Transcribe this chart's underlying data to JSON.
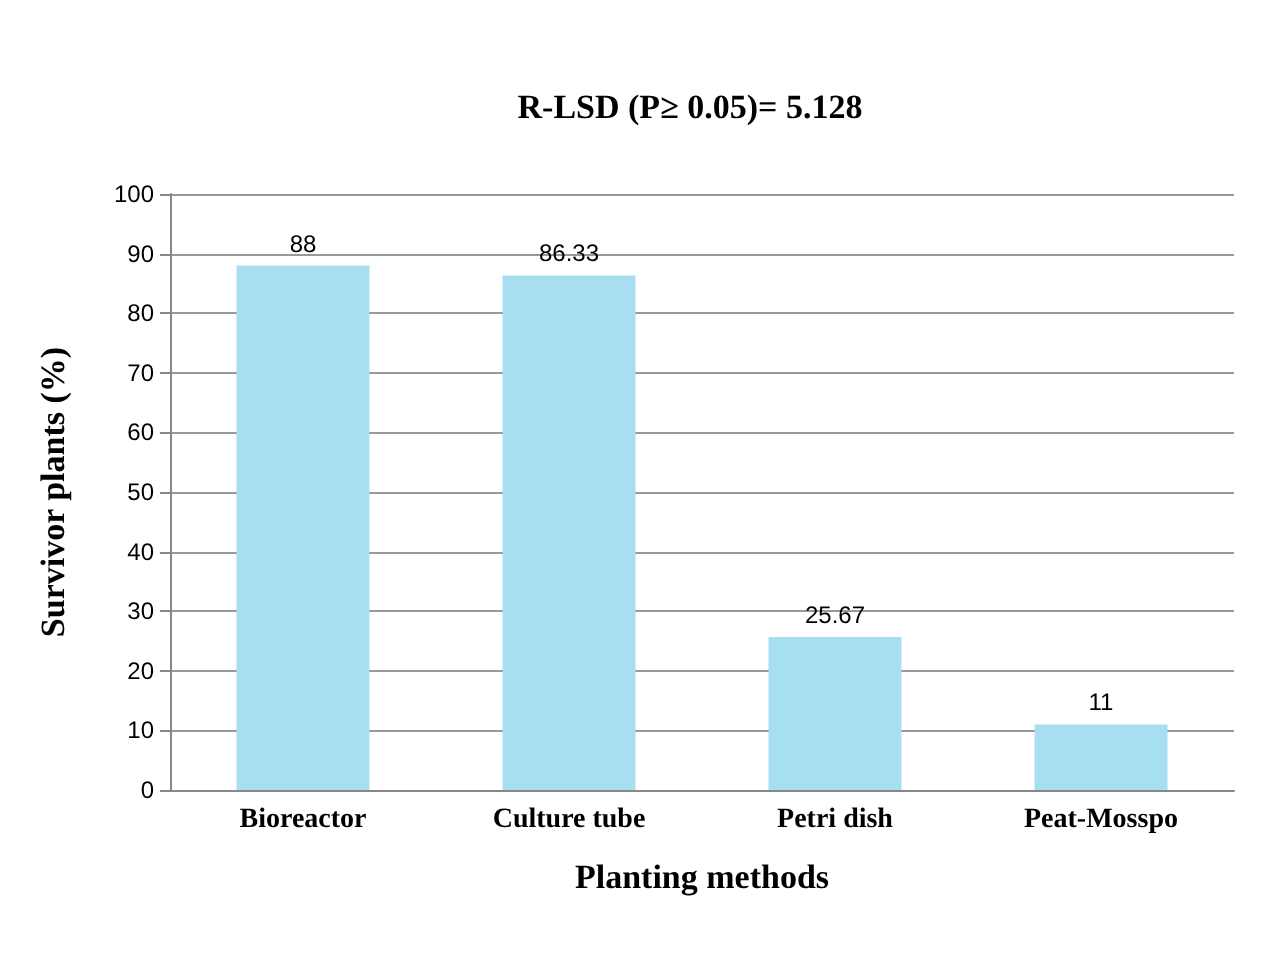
{
  "chart_data": {
    "type": "bar",
    "title": "R-LSD (P≥ 0.05)= 5.128",
    "xlabel": "Planting methods",
    "ylabel": "Survivor plants (%)",
    "categories": [
      "Bioreactor",
      "Culture tube",
      "Petri dish",
      "Peat-Mosspo"
    ],
    "values": [
      88,
      86.33,
      25.67,
      11
    ],
    "color": "#a8dff0",
    "ylim": [
      0,
      100
    ],
    "yticks": [
      0,
      10,
      20,
      30,
      40,
      50,
      60,
      70,
      80,
      90,
      100
    ],
    "grid": "y",
    "data_labels": true
  }
}
